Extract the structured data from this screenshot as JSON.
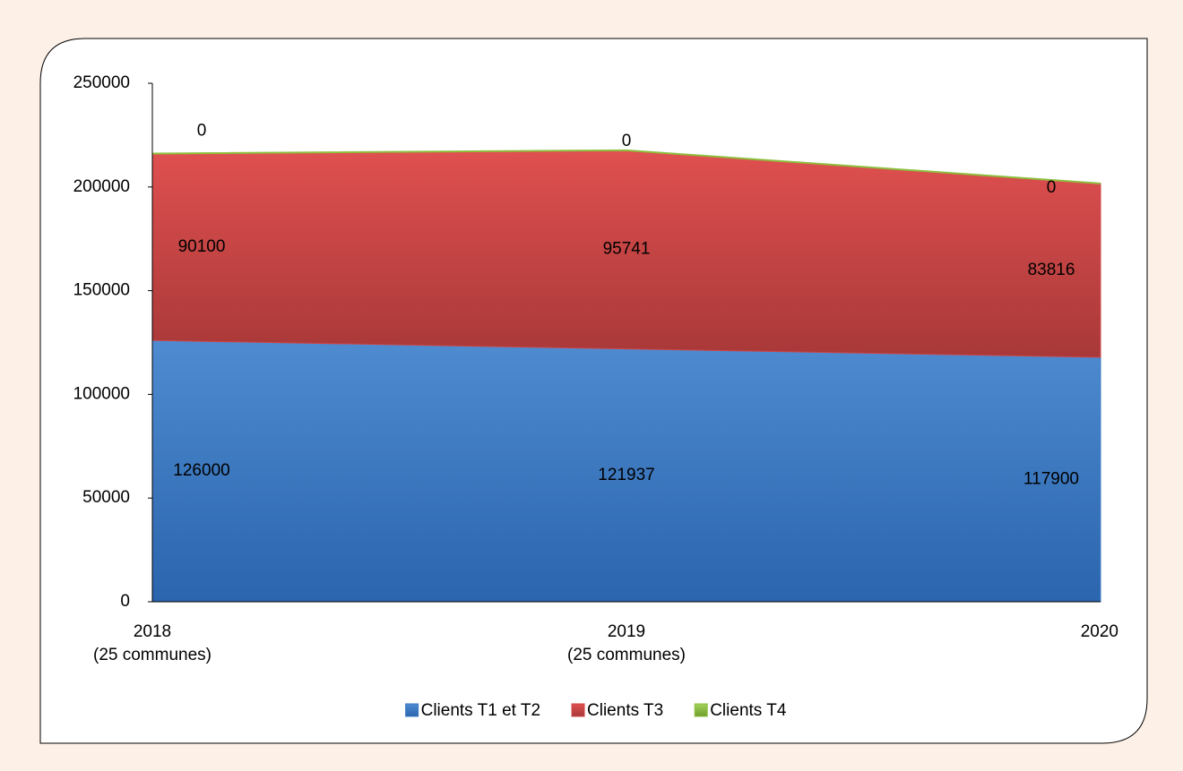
{
  "chart_data": {
    "type": "stacked-area",
    "categories": [
      [
        "2018",
        "(25 communes)"
      ],
      [
        "2019",
        "(25 communes)"
      ],
      [
        "2020"
      ]
    ],
    "series": [
      {
        "name": "Clients T1 et T2",
        "color": "#3b7bc4",
        "values": [
          126000,
          121937,
          117900
        ]
      },
      {
        "name": "Clients T3",
        "color": "#cf4545",
        "values": [
          90100,
          95741,
          83816
        ]
      },
      {
        "name": "Clients T4",
        "color": "#8dbf3e",
        "values": [
          0,
          0,
          0
        ]
      }
    ],
    "ylim": [
      0,
      250000
    ],
    "yticks": [
      0,
      50000,
      100000,
      150000,
      200000,
      250000
    ],
    "grid": false,
    "legend": "bottom"
  }
}
